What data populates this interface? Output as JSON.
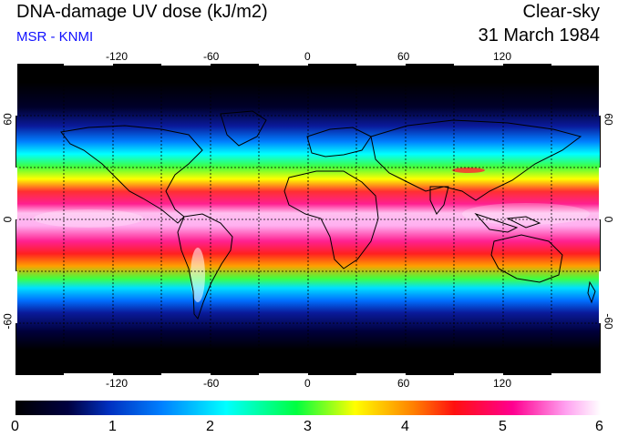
{
  "header": {
    "title": "DNA-damage UV dose (kJ/m2)",
    "credit": "MSR - KNMI",
    "sky_condition": "Clear-sky",
    "date": "31 March 1984"
  },
  "map": {
    "projection": "equirectangular",
    "lon_range": [
      -180,
      180
    ],
    "lat_range": [
      -90,
      90
    ],
    "lon_ticks": [
      "-120",
      "-60",
      "0",
      "60",
      "120"
    ],
    "lat_ticks_left": [
      "60",
      "0",
      "-60"
    ],
    "lat_ticks_right": [
      "60",
      "0",
      "-60"
    ],
    "gridlines": "dashed every 30 degrees",
    "variable": "DNA-damage UV dose",
    "units": "kJ/m2"
  },
  "colorbar": {
    "min": 0,
    "max": 6,
    "tick_labels": [
      "0",
      "1",
      "2",
      "3",
      "4",
      "5",
      "6"
    ],
    "colors": [
      "#000000",
      "#000080",
      "#0060ff",
      "#00ffff",
      "#00ff00",
      "#ffff00",
      "#ff2020",
      "#ff0090",
      "#ffffff"
    ]
  }
}
